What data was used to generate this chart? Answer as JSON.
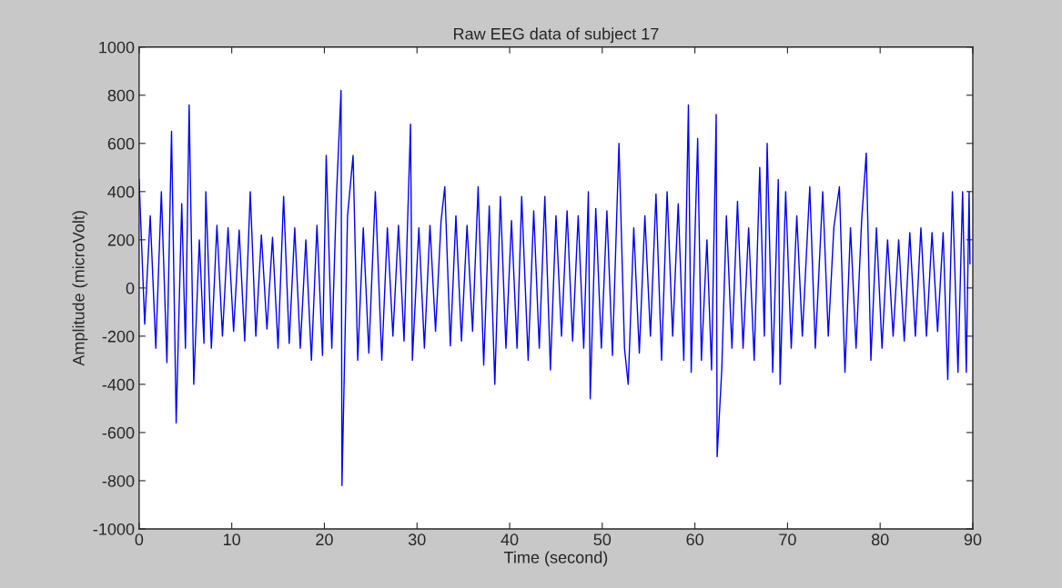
{
  "chart_data": {
    "type": "line",
    "title": "Raw EEG data of subject 17",
    "xlabel": "Time (second)",
    "ylabel": "Amplitude (microVolt)",
    "xlim": [
      0,
      90
    ],
    "ylim": [
      -1000,
      1000
    ],
    "xticks": [
      0,
      10,
      20,
      30,
      40,
      50,
      60,
      70,
      80,
      90
    ],
    "yticks": [
      -1000,
      -800,
      -600,
      -400,
      -200,
      0,
      200,
      400,
      600,
      800,
      1000
    ],
    "grid": false,
    "marker": "none",
    "line_style": "solid",
    "series": [
      {
        "color": "#0000ff",
        "x": [
          0,
          0.6,
          1.2,
          1.8,
          2.4,
          3.0,
          3.5,
          4.0,
          4.6,
          5.0,
          5.4,
          5.9,
          6.5,
          7.0,
          7.2,
          7.8,
          8.4,
          9.0,
          9.6,
          10.2,
          10.8,
          11.4,
          12.0,
          12.6,
          13.2,
          13.8,
          14.4,
          15.0,
          15.6,
          16.2,
          16.8,
          17.4,
          18.0,
          18.6,
          19.2,
          19.8,
          20.2,
          20.8,
          21.3,
          21.8,
          21.9,
          22.5,
          23.1,
          23.6,
          24.2,
          24.8,
          25.5,
          26.2,
          26.8,
          27.4,
          28.0,
          28.6,
          29.3,
          29.5,
          30.2,
          30.8,
          31.4,
          32.0,
          32.6,
          33.0,
          33.6,
          34.2,
          34.8,
          35.4,
          36.0,
          36.6,
          37.2,
          37.8,
          38.4,
          39.0,
          39.6,
          40.2,
          40.8,
          41.3,
          42.0,
          42.6,
          43.2,
          43.8,
          44.4,
          45.0,
          45.6,
          46.2,
          46.8,
          47.4,
          48.0,
          48.5,
          48.7,
          49.3,
          49.9,
          50.5,
          51.1,
          51.8,
          52.4,
          52.8,
          53.4,
          54.0,
          54.6,
          55.2,
          55.8,
          56.4,
          57.0,
          57.6,
          58.2,
          58.8,
          59.3,
          59.6,
          60.3,
          60.7,
          61.3,
          61.8,
          62.3,
          62.4,
          62.9,
          63.4,
          64.0,
          64.6,
          65.2,
          65.8,
          66.4,
          67.0,
          67.5,
          67.8,
          68.4,
          69.0,
          69.2,
          69.8,
          70.4,
          71.0,
          71.6,
          72.4,
          73.0,
          73.8,
          74.4,
          75.0,
          75.6,
          76.2,
          76.8,
          77.4,
          78.0,
          78.5,
          79.0,
          79.6,
          80.2,
          80.8,
          81.4,
          82.0,
          82.6,
          83.2,
          83.8,
          84.4,
          85.0,
          85.6,
          86.2,
          86.8,
          87.3,
          87.8,
          88.4,
          88.9,
          89.3,
          89.6,
          89.7
        ],
        "values": [
          450,
          -150,
          300,
          -250,
          400,
          -310,
          650,
          -560,
          350,
          -250,
          760,
          -400,
          200,
          -230,
          400,
          -250,
          260,
          -200,
          250,
          -180,
          240,
          -220,
          400,
          -200,
          220,
          -170,
          210,
          -250,
          380,
          -230,
          250,
          -250,
          200,
          -300,
          260,
          -280,
          550,
          -250,
          380,
          820,
          -820,
          300,
          550,
          -300,
          250,
          -270,
          400,
          -300,
          250,
          -200,
          260,
          -220,
          680,
          -300,
          250,
          -250,
          260,
          -180,
          280,
          420,
          -240,
          300,
          -220,
          260,
          -180,
          420,
          -320,
          340,
          -400,
          380,
          -250,
          280,
          -250,
          380,
          -300,
          320,
          -250,
          380,
          -340,
          300,
          -200,
          320,
          -220,
          300,
          -250,
          400,
          -460,
          330,
          -250,
          320,
          -280,
          600,
          -250,
          -400,
          250,
          -270,
          300,
          -200,
          390,
          -300,
          400,
          -200,
          350,
          -300,
          760,
          -350,
          620,
          -300,
          200,
          -340,
          720,
          -700,
          -340,
          300,
          -250,
          360,
          -250,
          250,
          -300,
          500,
          -200,
          600,
          -350,
          450,
          -400,
          400,
          -250,
          300,
          -200,
          420,
          -250,
          400,
          -200,
          250,
          420,
          -350,
          250,
          -250,
          280,
          560,
          -300,
          250,
          -250,
          200,
          -200,
          200,
          -220,
          230,
          -200,
          250,
          -200,
          230,
          -180,
          230,
          -380,
          400,
          -350,
          400,
          -350,
          400,
          100
        ]
      }
    ]
  }
}
